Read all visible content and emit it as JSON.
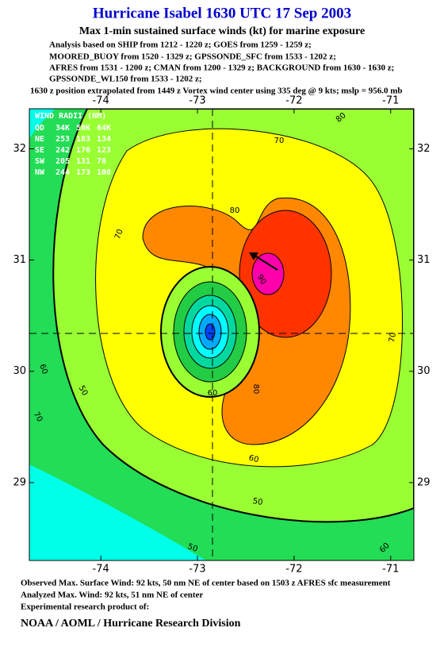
{
  "chart_data": {
    "type": "contour",
    "title": "Hurricane Isabel 1630 UTC 17 Sep 2003",
    "subtitle": "Max 1-min sustained surface winds (kt) for marine exposure",
    "notes": [
      "Analysis based on  SHIP from 1212 - 1220 z;  GOES from 1259 - 1259 z;",
      "MOORED_BUOY from 1520 - 1329 z;  GPSSONDE_SFC from 1533 - 1202 z;",
      "AFRES from 1531 - 1200 z;  CMAN from 1200 - 1329 z;  BACKGROUND from 1630 - 1630 z;",
      "GPSSONDE_WL150 from 1533 - 1202 z;",
      "1630 z position extrapolated from 1449 z Vortex wind center using 335 deg @ 9 kts; mslp = 956.0 mb"
    ],
    "xlim": [
      -74.74,
      -70.76
    ],
    "ylim": [
      28.3,
      32.36
    ],
    "xticks": [
      -74,
      -73,
      -72,
      -71
    ],
    "yticks": [
      29,
      30,
      31,
      32
    ],
    "levels": [
      {
        "value": 50,
        "color": "#22dd55"
      },
      {
        "value": 60,
        "color": "#99ff33"
      },
      {
        "value": 70,
        "color": "#ffff00"
      },
      {
        "value": 80,
        "color": "#ff8800"
      },
      {
        "value": 90,
        "color": "#ff00aa"
      }
    ],
    "below_color": "#00ffe8",
    "eye_colors": [
      "#99ff33",
      "#22cc44",
      "#00d8a0",
      "#00ffff",
      "#00aaff",
      "#0044ff"
    ],
    "contour_labels": [
      80,
      70,
      70,
      80,
      90,
      70,
      80,
      60,
      60,
      50,
      70,
      60,
      50,
      50,
      60
    ],
    "wind_radii": {
      "title": "WIND RADII (NM)",
      "rows": [
        [
          "QD",
          "34K",
          "50K",
          "64K"
        ],
        [
          "NE",
          "253",
          "183",
          "134"
        ],
        [
          "SE",
          "242",
          "176",
          "123"
        ],
        [
          "SW",
          "205",
          "131",
          "78"
        ],
        [
          "NW",
          "244",
          "173",
          "108"
        ]
      ]
    },
    "footer": [
      "Observed Max. Surface Wind: 92 kts, 50 nm NE of center based on 1503 z AFRES sfc measurement",
      "Analyzed Max. Wind: 92 kts, 51 nm NE of center",
      "Experimental research product of:",
      "NOAA / AOML / Hurricane Research Division"
    ]
  }
}
